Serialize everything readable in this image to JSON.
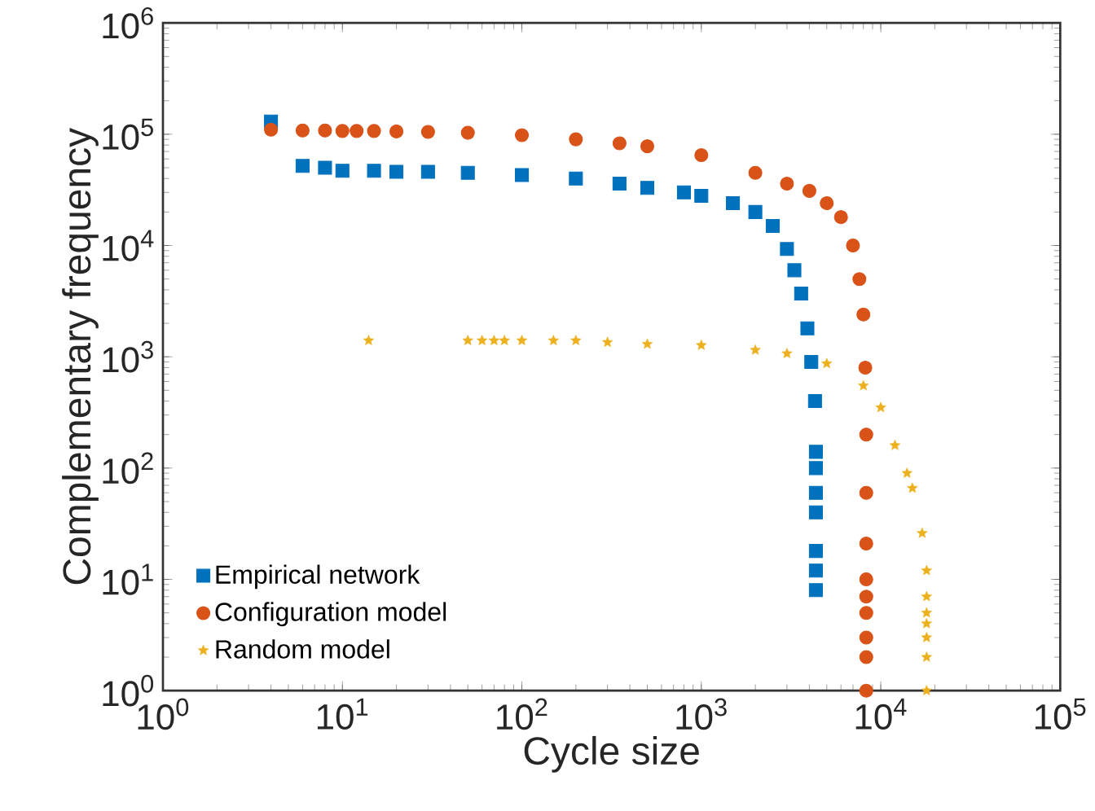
{
  "chart_data": {
    "type": "scatter",
    "xlabel": "Cycle size",
    "ylabel": "Complementary frequency",
    "log": "xy",
    "grid": false,
    "legend": "bottom left",
    "xlim": [
      1,
      100000
    ],
    "ylim": [
      1,
      1000000
    ],
    "xticks": [
      {
        "value": 1,
        "label": "10$^{0}$"
      },
      {
        "value": 10,
        "label": "10$^{1}$"
      },
      {
        "value": 100,
        "label": "10$^{2}$"
      },
      {
        "value": 1000,
        "label": "10$^{3}$"
      },
      {
        "value": 10000,
        "label": "10$^{4}$"
      },
      {
        "value": 100000,
        "label": "10$^{5}$"
      }
    ],
    "yticks": [
      {
        "value": 1,
        "label": "10$^{0}$"
      },
      {
        "value": 10,
        "label": "10$^{1}$"
      },
      {
        "value": 100,
        "label": "10$^{2}$"
      },
      {
        "value": 1000,
        "label": "10$^{3}$"
      },
      {
        "value": 10000,
        "label": "10$^{4}$"
      },
      {
        "value": 100000,
        "label": "10$^{5}$"
      },
      {
        "value": 1000000,
        "label": "10$^{6}$"
      }
    ],
    "series": [
      {
        "name": "Empirical network",
        "color": "#0072bd",
        "marker": "square",
        "x": [
          4,
          6,
          8,
          10,
          15,
          20,
          30,
          50,
          100,
          200,
          350,
          500,
          800,
          1000,
          1500,
          2000,
          2500,
          3000,
          3300,
          3600,
          3900,
          4100,
          4300,
          4350,
          4350,
          4350,
          4350,
          4350,
          4350,
          4350
        ],
        "values": [
          130000,
          52000,
          50000,
          47000,
          47000,
          46000,
          46000,
          45000,
          43000,
          40000,
          36000,
          33000,
          30000,
          28000,
          24000,
          20000,
          15000,
          9300,
          6000,
          3700,
          1800,
          900,
          400,
          140,
          100,
          60,
          40,
          18,
          12,
          8
        ]
      },
      {
        "name": "Configuration model",
        "color": "#d95319",
        "marker": "circle",
        "x": [
          4,
          6,
          8,
          10,
          12,
          15,
          20,
          30,
          50,
          100,
          200,
          350,
          500,
          1000,
          2000,
          3000,
          4000,
          5000,
          6000,
          7000,
          7600,
          8000,
          8200,
          8300,
          8300,
          8300,
          8300,
          8300,
          8300,
          8300,
          8300,
          8300
        ],
        "values": [
          110000,
          108000,
          108000,
          107000,
          107000,
          107000,
          106000,
          105000,
          103000,
          98000,
          90000,
          83000,
          78000,
          65000,
          45000,
          36000,
          31000,
          24000,
          18000,
          10000,
          5000,
          2400,
          800,
          200,
          60,
          21,
          10,
          7,
          5,
          3,
          2,
          1
        ]
      },
      {
        "name": "Random model",
        "color": "#edb120",
        "marker": "star",
        "x": [
          14,
          50,
          60,
          70,
          80,
          100,
          150,
          200,
          300,
          500,
          1000,
          2000,
          3000,
          5000,
          8000,
          10000,
          12000,
          14000,
          15000,
          17000,
          18000,
          18000,
          18000,
          18000,
          18000,
          18000,
          18000
        ],
        "values": [
          1400,
          1400,
          1400,
          1400,
          1400,
          1400,
          1400,
          1400,
          1350,
          1300,
          1270,
          1150,
          1070,
          870,
          550,
          350,
          160,
          90,
          66,
          26,
          12,
          7,
          5,
          4,
          3,
          2,
          1
        ]
      }
    ]
  }
}
